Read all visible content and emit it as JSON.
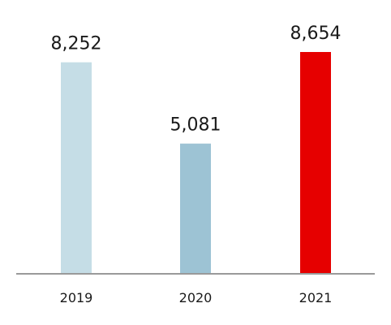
{
  "chart_data": {
    "type": "bar",
    "categories": [
      "2019",
      "2020",
      "2021"
    ],
    "values": [
      8252,
      5081,
      8654
    ],
    "value_labels": [
      "8,252",
      "5,081",
      "8,654"
    ],
    "colors": [
      "#c5dde6",
      "#9dc3d4",
      "#e60000"
    ],
    "axis_color": "#9a9a9a",
    "ylim": [
      0,
      8654
    ],
    "grid": false,
    "legend": "none"
  }
}
